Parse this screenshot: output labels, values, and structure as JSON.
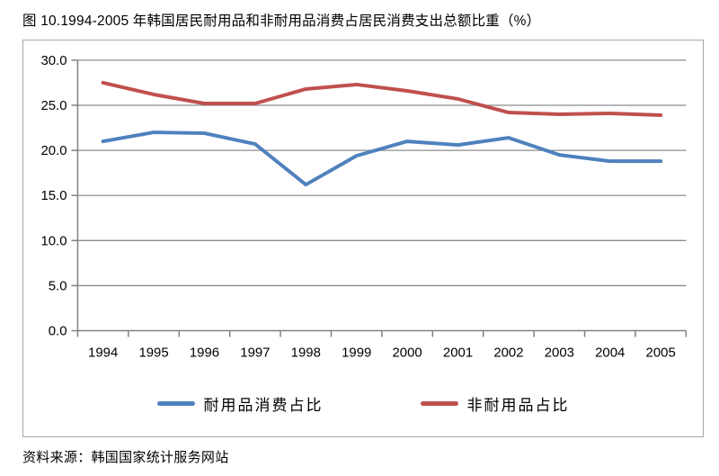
{
  "page": {
    "title": "图 10.1994-2005 年韩国居民耐用品和非耐用品消费占居民消费支出总额比重（%）",
    "source": "资料来源：韩国国家统计服务网站"
  },
  "chart_data": {
    "type": "line",
    "categories": [
      "1994",
      "1995",
      "1996",
      "1997",
      "1998",
      "1999",
      "2000",
      "2001",
      "2002",
      "2003",
      "2004",
      "2005"
    ],
    "series": [
      {
        "name": "耐用品消费占比",
        "color": "#4F81BD",
        "values": [
          21.0,
          22.0,
          21.9,
          20.7,
          16.2,
          19.4,
          21.0,
          20.6,
          21.4,
          19.5,
          18.8,
          18.8
        ]
      },
      {
        "name": "非耐用品占比",
        "color": "#C0504D",
        "values": [
          27.5,
          26.2,
          25.2,
          25.2,
          26.8,
          27.3,
          26.6,
          25.7,
          24.2,
          24.0,
          24.1,
          23.9
        ]
      }
    ],
    "title": "",
    "xlabel": "",
    "ylabel": "",
    "ylim": [
      0,
      30
    ],
    "ytick_step": 5,
    "ytick_labels": [
      "0.0",
      "5.0",
      "10.0",
      "15.0",
      "20.0",
      "25.0",
      "30.0"
    ],
    "grid": true,
    "legend_position": "bottom",
    "gridline_color": "#8C8C8C",
    "axis_color": "#808080",
    "plot_border_color": "#A6A6A6"
  }
}
